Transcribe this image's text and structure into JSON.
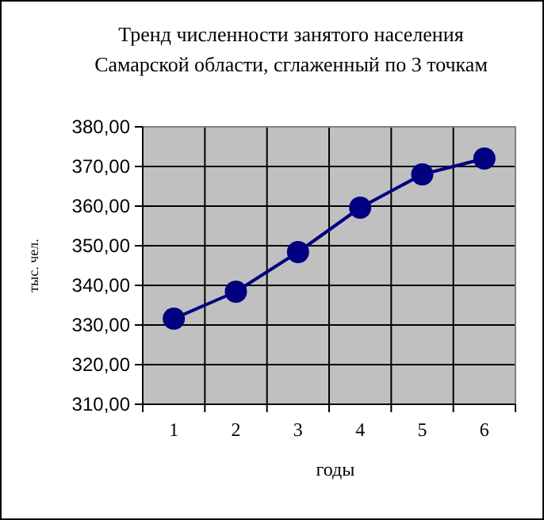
{
  "chart_data": {
    "type": "line",
    "title": "Тренд численности занятого населения\nСамарской области, сглаженный по 3 точкам",
    "xlabel": "годы",
    "ylabel": "тыс. чел.",
    "categories": [
      "1",
      "2",
      "3",
      "4",
      "5",
      "6"
    ],
    "series": [
      {
        "color": "#000080",
        "values": [
          331.6,
          338.4,
          348.4,
          359.6,
          368,
          372
        ]
      }
    ],
    "ylim": [
      310,
      380
    ],
    "yticks": [
      {
        "value": 310,
        "label": "310,00"
      },
      {
        "value": 320,
        "label": "320,00"
      },
      {
        "value": 330,
        "label": "330,00"
      },
      {
        "value": 340,
        "label": "340,00"
      },
      {
        "value": 350,
        "label": "350,00"
      },
      {
        "value": 360,
        "label": "360,00"
      },
      {
        "value": 370,
        "label": "370,00"
      },
      {
        "value": 380,
        "label": "380,00"
      }
    ],
    "grid": true,
    "marker": "circle"
  }
}
